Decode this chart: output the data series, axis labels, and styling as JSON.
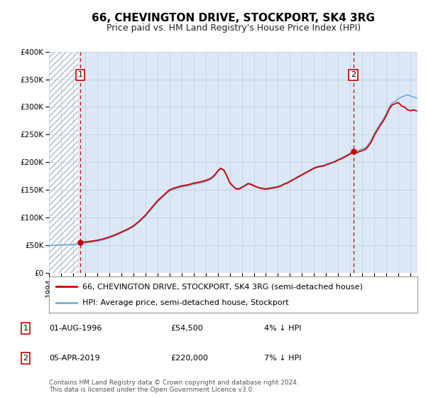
{
  "title": "66, CHEVINGTON DRIVE, STOCKPORT, SK4 3RG",
  "subtitle": "Price paid vs. HM Land Registry's House Price Index (HPI)",
  "ylim": [
    0,
    400000
  ],
  "yticks": [
    0,
    50000,
    100000,
    150000,
    200000,
    250000,
    300000,
    350000,
    400000
  ],
  "ytick_labels": [
    "£0",
    "£50K",
    "£100K",
    "£150K",
    "£200K",
    "£250K",
    "£300K",
    "£350K",
    "£400K"
  ],
  "xlim_start": 1994.0,
  "xlim_end": 2024.58,
  "background_color": "#ffffff",
  "plot_bg_color": "#dce8f5",
  "hatch_region_end": 1996.42,
  "sale1_x": 1996.583,
  "sale1_y": 54500,
  "sale1_label": "1",
  "sale1_date": "01-AUG-1996",
  "sale1_price": "£54,500",
  "sale1_hpi": "4% ↓ HPI",
  "sale2_x": 2019.25,
  "sale2_y": 220000,
  "sale2_label": "2",
  "sale2_date": "05-APR-2019",
  "sale2_price": "£220,000",
  "sale2_hpi": "7% ↓ HPI",
  "red_line_color": "#cc0000",
  "blue_line_color": "#7aadd4",
  "dashed_vline_color": "#cc0000",
  "grid_color": "#bbccdd",
  "hatch_color": "#aabbcc",
  "legend_label_red": "66, CHEVINGTON DRIVE, STOCKPORT, SK4 3RG (semi-detached house)",
  "legend_label_blue": "HPI: Average price, semi-detached house, Stockport",
  "footer_text": "Contains HM Land Registry data © Crown copyright and database right 2024.\nThis data is licensed under the Open Government Licence v3.0.",
  "title_fontsize": 11,
  "subtitle_fontsize": 9,
  "tick_fontsize": 7.5,
  "legend_fontsize": 8,
  "annotation_fontsize": 8,
  "footer_fontsize": 6.5,
  "hpi_x": [
    1994.0,
    1994.5,
    1995.0,
    1995.5,
    1996.0,
    1996.5,
    1997.0,
    1997.5,
    1998.0,
    1998.5,
    1999.0,
    1999.5,
    2000.0,
    2000.5,
    2001.0,
    2001.5,
    2002.0,
    2002.5,
    2003.0,
    2003.5,
    2004.0,
    2004.5,
    2005.0,
    2005.5,
    2006.0,
    2006.5,
    2007.0,
    2007.25,
    2007.5,
    2007.75,
    2008.0,
    2008.25,
    2008.5,
    2008.75,
    2009.0,
    2009.25,
    2009.5,
    2009.75,
    2010.0,
    2010.25,
    2010.5,
    2010.75,
    2011.0,
    2011.25,
    2011.5,
    2011.75,
    2012.0,
    2012.25,
    2012.5,
    2012.75,
    2013.0,
    2013.25,
    2013.5,
    2013.75,
    2014.0,
    2014.25,
    2014.5,
    2014.75,
    2015.0,
    2015.25,
    2015.5,
    2015.75,
    2016.0,
    2016.25,
    2016.5,
    2016.75,
    2017.0,
    2017.25,
    2017.5,
    2017.75,
    2018.0,
    2018.25,
    2018.5,
    2018.75,
    2019.0,
    2019.25,
    2019.5,
    2019.75,
    2020.0,
    2020.25,
    2020.5,
    2020.75,
    2021.0,
    2021.25,
    2021.5,
    2021.75,
    2022.0,
    2022.25,
    2022.5,
    2022.75,
    2023.0,
    2023.25,
    2023.5,
    2023.75,
    2024.0,
    2024.25,
    2024.5
  ],
  "hpi_y": [
    49000,
    49500,
    50000,
    50500,
    51000,
    52000,
    53500,
    55000,
    57000,
    59500,
    63000,
    67000,
    72000,
    77000,
    83000,
    92000,
    102000,
    115000,
    128000,
    138000,
    148000,
    152000,
    155000,
    157000,
    160000,
    162000,
    165000,
    167000,
    170000,
    175000,
    183000,
    188000,
    185000,
    175000,
    163000,
    157000,
    153000,
    152000,
    155000,
    158000,
    162000,
    161000,
    158000,
    156000,
    154000,
    153000,
    152000,
    153000,
    154000,
    155000,
    156000,
    158000,
    161000,
    163000,
    166000,
    169000,
    172000,
    175000,
    178000,
    181000,
    184000,
    187000,
    190000,
    192000,
    193000,
    194000,
    196000,
    198000,
    200000,
    202000,
    205000,
    207000,
    210000,
    213000,
    216000,
    218000,
    220000,
    222000,
    224000,
    226000,
    232000,
    240000,
    252000,
    261000,
    270000,
    278000,
    288000,
    300000,
    308000,
    310000,
    315000,
    318000,
    320000,
    322000,
    320000,
    318000,
    316000
  ],
  "red_x": [
    1996.583,
    1997.0,
    1997.5,
    1998.0,
    1998.5,
    1999.0,
    1999.5,
    2000.0,
    2000.5,
    2001.0,
    2001.5,
    2002.0,
    2002.5,
    2003.0,
    2003.5,
    2004.0,
    2004.5,
    2005.0,
    2005.5,
    2006.0,
    2006.5,
    2007.0,
    2007.25,
    2007.5,
    2007.75,
    2008.0,
    2008.25,
    2008.5,
    2008.75,
    2009.0,
    2009.25,
    2009.5,
    2009.75,
    2010.0,
    2010.25,
    2010.5,
    2010.75,
    2011.0,
    2011.25,
    2011.5,
    2011.75,
    2012.0,
    2012.25,
    2012.5,
    2012.75,
    2013.0,
    2013.25,
    2013.5,
    2013.75,
    2014.0,
    2014.25,
    2014.5,
    2014.75,
    2015.0,
    2015.25,
    2015.5,
    2015.75,
    2016.0,
    2016.25,
    2016.5,
    2016.75,
    2017.0,
    2017.25,
    2017.5,
    2017.75,
    2018.0,
    2018.25,
    2018.5,
    2018.75,
    2019.0,
    2019.25,
    2019.5,
    2019.75,
    2020.0,
    2020.25,
    2020.5,
    2020.75,
    2021.0,
    2021.25,
    2021.5,
    2021.75,
    2022.0,
    2022.25,
    2022.5,
    2022.75,
    2023.0,
    2023.25,
    2023.5,
    2023.75,
    2024.0,
    2024.25,
    2024.5
  ],
  "red_y": [
    54500,
    55500,
    57000,
    58500,
    61000,
    64500,
    68500,
    73500,
    78500,
    84500,
    93500,
    104000,
    117000,
    130000,
    140000,
    150000,
    154000,
    157000,
    159000,
    162000,
    164000,
    167000,
    169000,
    172000,
    177000,
    184000,
    189000,
    186000,
    176000,
    163000,
    157000,
    152000,
    151000,
    154000,
    157000,
    161000,
    160000,
    157000,
    155000,
    153000,
    152000,
    151000,
    152000,
    153000,
    154000,
    155000,
    157000,
    160000,
    162000,
    165000,
    168000,
    171000,
    174000,
    177000,
    180000,
    183000,
    186000,
    189000,
    191000,
    192000,
    193000,
    195000,
    197000,
    199000,
    201000,
    204000,
    206000,
    209000,
    212000,
    215000,
    220000,
    217000,
    219000,
    221000,
    223000,
    229000,
    237000,
    249000,
    258000,
    267000,
    275000,
    285000,
    297000,
    304000,
    306000,
    308000,
    302000,
    300000,
    295000,
    293000,
    295000,
    293000
  ]
}
